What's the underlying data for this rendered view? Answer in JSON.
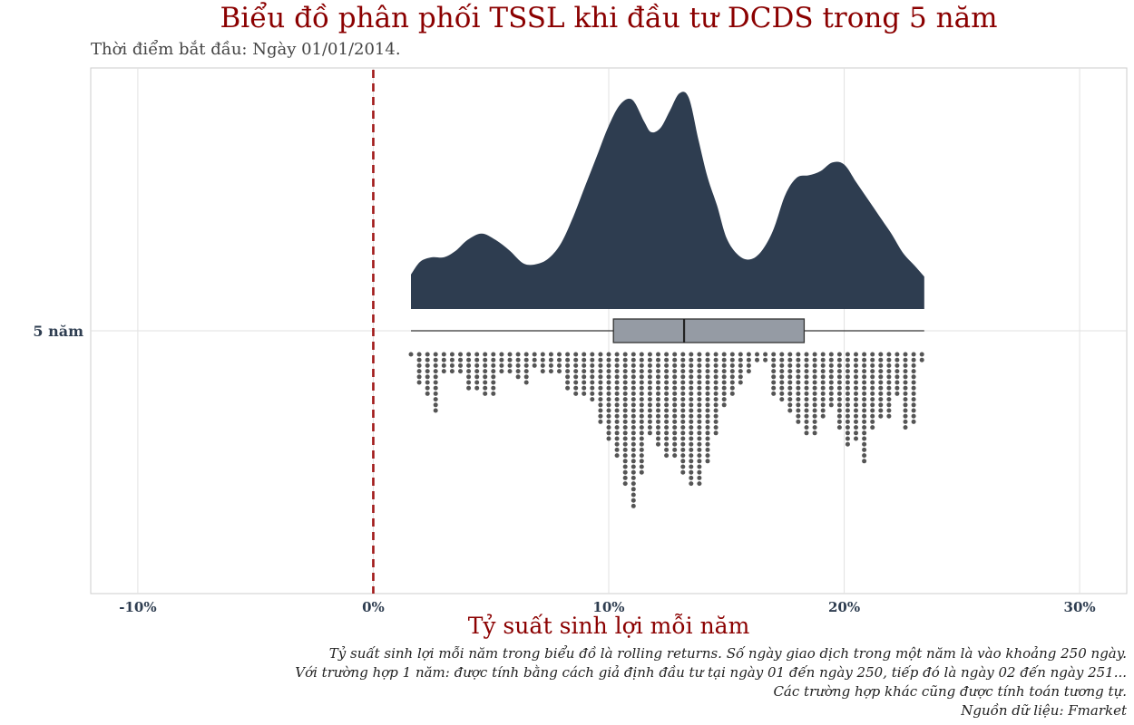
{
  "title": "Biểu đồ phân phối TSSL khi đầu tư DCDS trong 5 năm",
  "subtitle": "Thời điểm bắt đầu: Ngày 01/01/2014.",
  "chart_data": {
    "type": "raincloud",
    "category": "5 năm",
    "xlabel": "Tỷ suất sinh lợi mỗi năm",
    "xlim": [
      -12,
      32
    ],
    "xticks": [
      -10,
      0,
      10,
      20,
      30
    ],
    "xtick_labels": [
      "-10%",
      "0%",
      "10%",
      "20%",
      "30%"
    ],
    "reference_line": {
      "x": 0,
      "style": "dashed",
      "color": "#a01818"
    },
    "colors": {
      "density_fill": "#2e3d50",
      "box_fill": "#959ba4",
      "dots": "#555555"
    },
    "boxplot": {
      "min": 1.6,
      "q1": 10.2,
      "median": 13.2,
      "q3": 18.3,
      "max": 23.4
    },
    "density": {
      "x": [
        1.6,
        2.0,
        2.5,
        3.0,
        3.5,
        4.0,
        4.6,
        5.2,
        5.8,
        6.4,
        7.0,
        7.5,
        8.0,
        8.5,
        9.0,
        9.5,
        10.0,
        10.5,
        11.0,
        11.5,
        11.8,
        12.2,
        12.6,
        13.0,
        13.4,
        13.8,
        14.2,
        14.6,
        15.0,
        15.5,
        16.0,
        16.5,
        17.0,
        17.5,
        18.0,
        18.5,
        19.0,
        19.5,
        20.0,
        20.5,
        21.0,
        21.5,
        22.0,
        22.5,
        23.0,
        23.4
      ],
      "y": [
        0.16,
        0.22,
        0.24,
        0.24,
        0.27,
        0.32,
        0.35,
        0.32,
        0.27,
        0.21,
        0.21,
        0.24,
        0.31,
        0.43,
        0.57,
        0.71,
        0.85,
        0.95,
        0.97,
        0.87,
        0.82,
        0.84,
        0.92,
        1.0,
        0.98,
        0.79,
        0.61,
        0.48,
        0.33,
        0.25,
        0.23,
        0.27,
        0.37,
        0.53,
        0.61,
        0.62,
        0.64,
        0.68,
        0.67,
        0.59,
        0.51,
        0.43,
        0.35,
        0.26,
        0.2,
        0.15
      ]
    },
    "dots": {
      "x": [
        1.6,
        1.95,
        2.3,
        2.65,
        3.0,
        3.35,
        3.7,
        4.05,
        4.4,
        4.75,
        5.1,
        5.45,
        5.8,
        6.15,
        6.5,
        6.85,
        7.2,
        7.55,
        7.9,
        8.25,
        8.6,
        8.95,
        9.3,
        9.65,
        10.0,
        10.35,
        10.7,
        11.05,
        11.4,
        11.75,
        12.1,
        12.45,
        12.8,
        13.15,
        13.5,
        13.85,
        14.2,
        14.55,
        14.9,
        15.25,
        15.6,
        15.95,
        16.3,
        16.65,
        17.0,
        17.35,
        17.7,
        18.05,
        18.4,
        18.75,
        19.1,
        19.45,
        19.8,
        20.15,
        20.5,
        20.85,
        21.2,
        21.55,
        21.9,
        22.25,
        22.6,
        22.95,
        23.3
      ],
      "counts": [
        1,
        6,
        8,
        11,
        4,
        4,
        4,
        7,
        7,
        8,
        8,
        4,
        4,
        5,
        6,
        3,
        4,
        4,
        4,
        7,
        8,
        8,
        9,
        13,
        16,
        19,
        24,
        28,
        22,
        15,
        17,
        19,
        19,
        22,
        24,
        24,
        20,
        15,
        10,
        8,
        6,
        4,
        2,
        2,
        8,
        9,
        11,
        13,
        15,
        15,
        12,
        10,
        14,
        17,
        16,
        20,
        14,
        12,
        12,
        8,
        14,
        13,
        2
      ]
    }
  },
  "caption": [
    "Tỷ suất sinh lợi mỗi năm trong biểu đồ là rolling returns. Số ngày giao dịch trong một năm là vào khoảng 250 ngày.",
    "Với trường hợp 1 năm: được tính bằng cách giả định đầu tư tại ngày 01 đến ngày 250, tiếp đó là ngày 02 đến ngày 251...",
    "Các trường hợp khác cũng được tính toán tương tự.",
    "Nguồn dữ liệu: Fmarket"
  ]
}
